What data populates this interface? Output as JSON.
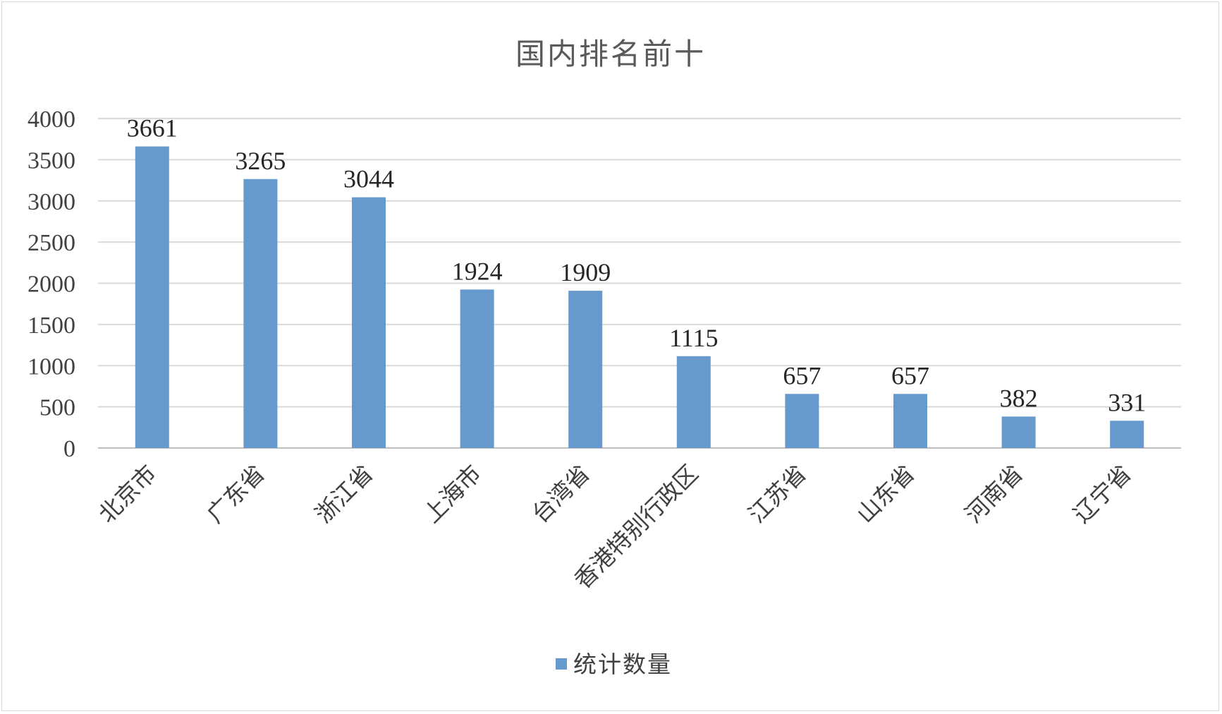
{
  "chart_data": {
    "type": "bar",
    "title": "国内排名前十",
    "categories": [
      "北京市",
      "广东省",
      "浙江省",
      "上海市",
      "台湾省",
      "香港特别行政区",
      "江苏省",
      "山东省",
      "河南省",
      "辽宁省"
    ],
    "series": [
      {
        "name": "统计数量",
        "values": [
          3661,
          3265,
          3044,
          1924,
          1909,
          1115,
          657,
          657,
          382,
          331
        ],
        "color": "#6699cc"
      }
    ],
    "y_ticks": [
      "0",
      "500",
      "1000",
      "1500",
      "2000",
      "2500",
      "3000",
      "3500",
      "4000"
    ],
    "ylim": [
      0,
      4000
    ],
    "grid": true,
    "legend_position": "bottom",
    "data_labels": true
  }
}
